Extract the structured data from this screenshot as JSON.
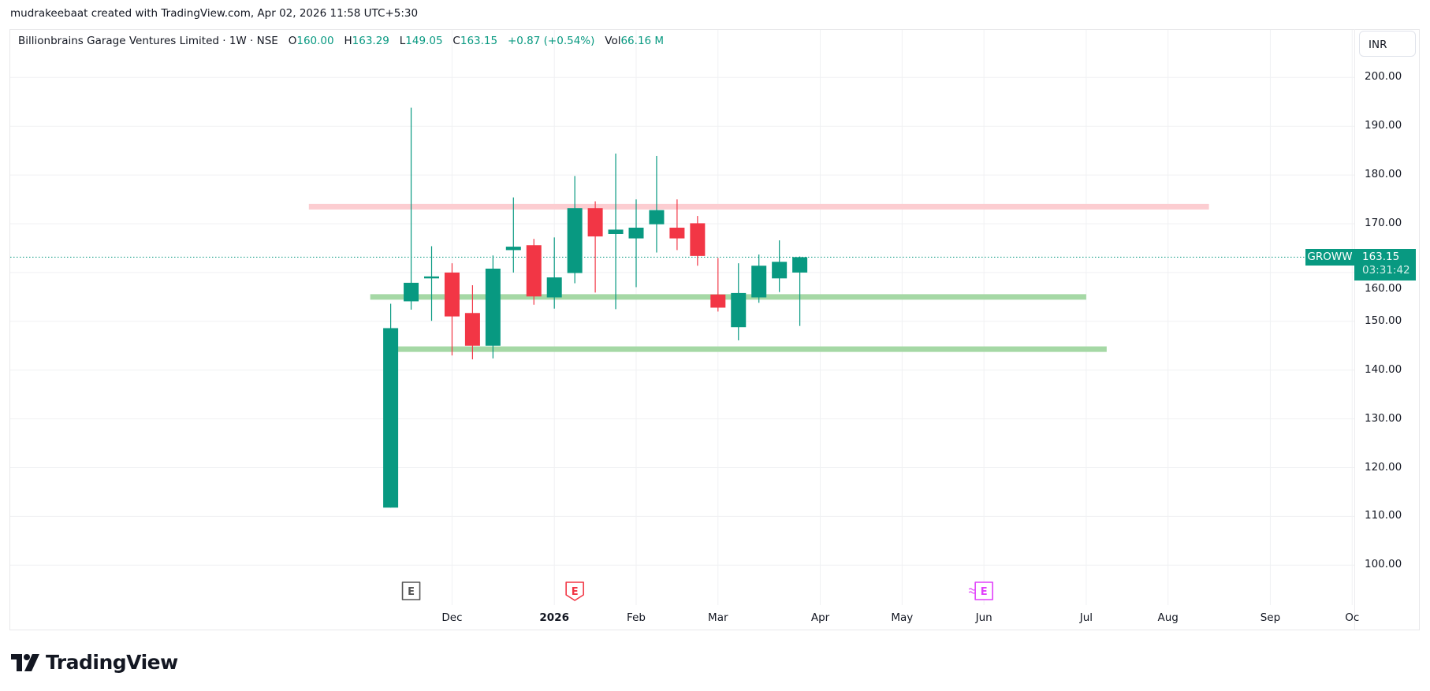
{
  "credit": "mudrakeebaat created with TradingView.com, Apr 02, 2026 11:58 UTC+5:30",
  "legend": {
    "symbol_name": "Billionbrains Garage Ventures Limited · 1W · NSE",
    "open_label": "O",
    "open": "160.00",
    "high_label": "H",
    "high": "163.29",
    "low_label": "L",
    "low": "149.05",
    "close_label": "C",
    "close": "163.15",
    "change": "+0.87 (+0.54%)",
    "vol_label": "Vol",
    "vol": "66.16 M"
  },
  "currency_button": "INR",
  "last_price": {
    "ticker": "GROWW",
    "price": "163.15",
    "countdown": "03:31:42"
  },
  "logo_text": "TradingView",
  "colors": {
    "up": "#089981",
    "down": "#F23645",
    "resistance": "#fccdd1",
    "support": "#a5d8a5",
    "earnings_past": "#555555",
    "earnings_reported": "#F23645",
    "earnings_upcoming": "#e040fb"
  },
  "chart_data": {
    "type": "candlestick",
    "interval": "1W",
    "ylim": [
      92,
      207
    ],
    "grid": true,
    "y_ticks": [
      "200.00",
      "190.00",
      "180.00",
      "170.00",
      "160.00",
      "150.00",
      "140.00",
      "130.00",
      "120.00",
      "110.00",
      "100.00"
    ],
    "x_ticks": [
      {
        "label": "Dec",
        "date": "2025-12-01",
        "bold": false
      },
      {
        "label": "2026",
        "date": "2026-01-05",
        "bold": true
      },
      {
        "label": "Feb",
        "date": "2026-02-02",
        "bold": false
      },
      {
        "label": "Mar",
        "date": "2026-03-02",
        "bold": false
      },
      {
        "label": "Apr",
        "date": "2026-04-06",
        "bold": false
      },
      {
        "label": "May",
        "date": "2026-05-04",
        "bold": false
      },
      {
        "label": "Jun",
        "date": "2026-06-01",
        "bold": false
      },
      {
        "label": "Jul",
        "date": "2026-07-06",
        "bold": false
      },
      {
        "label": "Aug",
        "date": "2026-08-03",
        "bold": false
      },
      {
        "label": "Sep",
        "date": "2026-09-07",
        "bold": false
      },
      {
        "label": "Oc",
        "date": "2026-10-05",
        "bold": false
      }
    ],
    "candles": [
      {
        "date": "2025-11-10",
        "o": 111.8,
        "h": 153.6,
        "l": 111.8,
        "c": 148.6
      },
      {
        "date": "2025-11-17",
        "o": 154.1,
        "h": 193.8,
        "l": 152.4,
        "c": 157.9
      },
      {
        "date": "2025-11-24",
        "o": 158.8,
        "h": 165.4,
        "l": 150.1,
        "c": 159.2
      },
      {
        "date": "2025-12-01",
        "o": 160.0,
        "h": 161.9,
        "l": 143.0,
        "c": 151.0
      },
      {
        "date": "2025-12-08",
        "o": 151.7,
        "h": 157.4,
        "l": 142.2,
        "c": 145.0
      },
      {
        "date": "2025-12-15",
        "o": 145.0,
        "h": 163.5,
        "l": 142.4,
        "c": 160.8
      },
      {
        "date": "2025-12-22",
        "o": 164.6,
        "h": 175.4,
        "l": 160.0,
        "c": 165.3
      },
      {
        "date": "2025-12-29",
        "o": 165.6,
        "h": 166.9,
        "l": 153.4,
        "c": 155.1
      },
      {
        "date": "2026-01-05",
        "o": 154.9,
        "h": 167.2,
        "l": 152.6,
        "c": 159.0
      },
      {
        "date": "2026-01-12",
        "o": 159.9,
        "h": 179.8,
        "l": 157.8,
        "c": 173.2
      },
      {
        "date": "2026-01-19",
        "o": 173.2,
        "h": 174.6,
        "l": 155.9,
        "c": 167.4
      },
      {
        "date": "2026-01-26",
        "o": 167.9,
        "h": 184.4,
        "l": 152.5,
        "c": 168.8
      },
      {
        "date": "2026-02-02",
        "o": 167.0,
        "h": 175.0,
        "l": 157.0,
        "c": 169.2
      },
      {
        "date": "2026-02-09",
        "o": 169.9,
        "h": 183.9,
        "l": 164.1,
        "c": 172.8
      },
      {
        "date": "2026-02-16",
        "o": 169.2,
        "h": 175.0,
        "l": 164.6,
        "c": 167.0
      },
      {
        "date": "2026-02-23",
        "o": 170.1,
        "h": 171.6,
        "l": 161.4,
        "c": 163.4
      },
      {
        "date": "2026-03-02",
        "o": 155.5,
        "h": 163.0,
        "l": 152.0,
        "c": 152.8
      },
      {
        "date": "2026-03-09",
        "o": 148.8,
        "h": 161.9,
        "l": 146.1,
        "c": 155.8
      },
      {
        "date": "2026-03-16",
        "o": 154.9,
        "h": 163.7,
        "l": 153.8,
        "c": 161.4
      },
      {
        "date": "2026-03-23",
        "o": 158.8,
        "h": 166.6,
        "l": 156.0,
        "c": 162.2
      },
      {
        "date": "2026-03-30",
        "o": 160.0,
        "h": 163.29,
        "l": 149.05,
        "c": 163.15
      }
    ],
    "horizontal_lines": [
      {
        "kind": "resistance",
        "price": 173.5,
        "from": "2025-10-13",
        "to": "2026-08-17"
      },
      {
        "kind": "support",
        "price": 155.0,
        "from": "2025-11-03",
        "to": "2026-07-06"
      },
      {
        "kind": "support",
        "price": 144.3,
        "from": "2025-11-12",
        "to": "2026-07-13"
      }
    ],
    "current_price": 163.15,
    "earnings_events": [
      {
        "status": "past",
        "date": "2025-11-17",
        "label": "E"
      },
      {
        "status": "reported",
        "date": "2026-01-12",
        "label": "E"
      },
      {
        "status": "upcoming",
        "date": "2026-06-01",
        "label": "E"
      }
    ]
  }
}
